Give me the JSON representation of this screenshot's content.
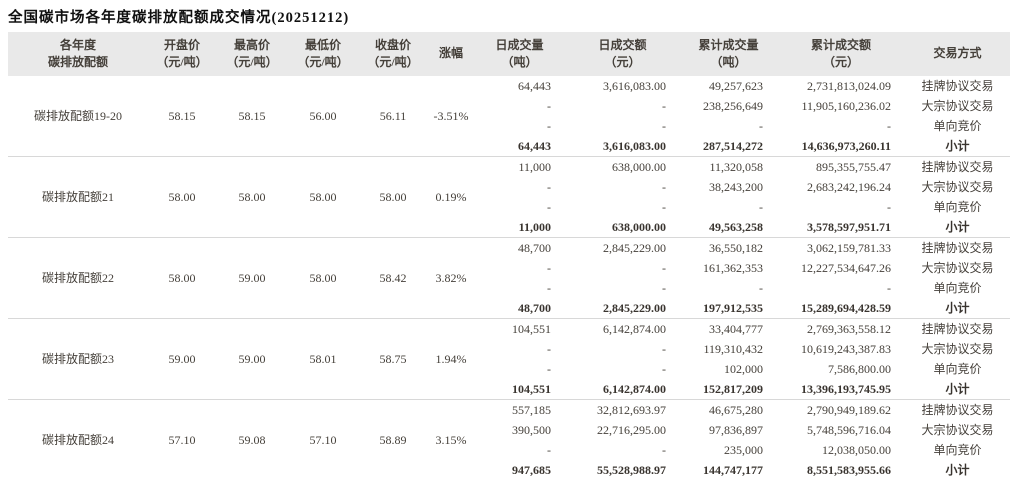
{
  "title": "全国碳市场各年度碳排放配额成交情况(20251212)",
  "colors": {
    "header_bg": "#e9e9e9",
    "body_text": "#45403a",
    "title_text": "#101010",
    "block_divider": "#d8d8d8"
  },
  "table": {
    "headers": [
      {
        "key": "year-quota",
        "line1": "各年度",
        "line2": "碳排放配额"
      },
      {
        "key": "open-price",
        "line1": "开盘价",
        "line2": "（元/吨）"
      },
      {
        "key": "high-price",
        "line1": "最高价",
        "line2": "（元/吨）"
      },
      {
        "key": "low-price",
        "line1": "最低价",
        "line2": "（元/吨）"
      },
      {
        "key": "close-price",
        "line1": "收盘价",
        "line2": "（元/吨）"
      },
      {
        "key": "change",
        "line1": "涨幅",
        "line2": ""
      },
      {
        "key": "daily-volume",
        "line1": "日成交量",
        "line2": "（吨）"
      },
      {
        "key": "daily-amount",
        "line1": "日成交额",
        "line2": "（元）"
      },
      {
        "key": "cum-volume",
        "line1": "累计成交量",
        "line2": "（吨）"
      },
      {
        "key": "cum-amount",
        "line1": "累计成交额",
        "line2": "（元）"
      },
      {
        "key": "trade-method",
        "line1": "交易方式",
        "line2": ""
      }
    ],
    "blocks": [
      {
        "name": "碳排放配额19-20",
        "open": "58.15",
        "high": "58.15",
        "low": "56.00",
        "close": "56.11",
        "change": "-3.51%",
        "rows": [
          {
            "daily_volume": "64,443",
            "daily_amount": "3,616,083.00",
            "cum_volume": "49,257,623",
            "cum_amount": "2,731,813,024.09",
            "method": "挂牌协议交易",
            "subtotal": false
          },
          {
            "daily_volume": "-",
            "daily_amount": "-",
            "cum_volume": "238,256,649",
            "cum_amount": "11,905,160,236.02",
            "method": "大宗协议交易",
            "subtotal": false
          },
          {
            "daily_volume": "-",
            "daily_amount": "-",
            "cum_volume": "-",
            "cum_amount": "-",
            "method": "单向竞价",
            "subtotal": false
          },
          {
            "daily_volume": "64,443",
            "daily_amount": "3,616,083.00",
            "cum_volume": "287,514,272",
            "cum_amount": "14,636,973,260.11",
            "method": "小计",
            "subtotal": true
          }
        ]
      },
      {
        "name": "碳排放配额21",
        "open": "58.00",
        "high": "58.00",
        "low": "58.00",
        "close": "58.00",
        "change": "0.19%",
        "rows": [
          {
            "daily_volume": "11,000",
            "daily_amount": "638,000.00",
            "cum_volume": "11,320,058",
            "cum_amount": "895,355,755.47",
            "method": "挂牌协议交易",
            "subtotal": false
          },
          {
            "daily_volume": "-",
            "daily_amount": "-",
            "cum_volume": "38,243,200",
            "cum_amount": "2,683,242,196.24",
            "method": "大宗协议交易",
            "subtotal": false
          },
          {
            "daily_volume": "-",
            "daily_amount": "-",
            "cum_volume": "-",
            "cum_amount": "-",
            "method": "单向竞价",
            "subtotal": false
          },
          {
            "daily_volume": "11,000",
            "daily_amount": "638,000.00",
            "cum_volume": "49,563,258",
            "cum_amount": "3,578,597,951.71",
            "method": "小计",
            "subtotal": true
          }
        ]
      },
      {
        "name": "碳排放配额22",
        "open": "58.00",
        "high": "59.00",
        "low": "58.00",
        "close": "58.42",
        "change": "3.82%",
        "rows": [
          {
            "daily_volume": "48,700",
            "daily_amount": "2,845,229.00",
            "cum_volume": "36,550,182",
            "cum_amount": "3,062,159,781.33",
            "method": "挂牌协议交易",
            "subtotal": false
          },
          {
            "daily_volume": "-",
            "daily_amount": "-",
            "cum_volume": "161,362,353",
            "cum_amount": "12,227,534,647.26",
            "method": "大宗协议交易",
            "subtotal": false
          },
          {
            "daily_volume": "-",
            "daily_amount": "-",
            "cum_volume": "-",
            "cum_amount": "-",
            "method": "单向竞价",
            "subtotal": false
          },
          {
            "daily_volume": "48,700",
            "daily_amount": "2,845,229.00",
            "cum_volume": "197,912,535",
            "cum_amount": "15,289,694,428.59",
            "method": "小计",
            "subtotal": true
          }
        ]
      },
      {
        "name": "碳排放配额23",
        "open": "59.00",
        "high": "59.00",
        "low": "58.01",
        "close": "58.75",
        "change": "1.94%",
        "rows": [
          {
            "daily_volume": "104,551",
            "daily_amount": "6,142,874.00",
            "cum_volume": "33,404,777",
            "cum_amount": "2,769,363,558.12",
            "method": "挂牌协议交易",
            "subtotal": false
          },
          {
            "daily_volume": "-",
            "daily_amount": "-",
            "cum_volume": "119,310,432",
            "cum_amount": "10,619,243,387.83",
            "method": "大宗协议交易",
            "subtotal": false
          },
          {
            "daily_volume": "-",
            "daily_amount": "-",
            "cum_volume": "102,000",
            "cum_amount": "7,586,800.00",
            "method": "单向竞价",
            "subtotal": false
          },
          {
            "daily_volume": "104,551",
            "daily_amount": "6,142,874.00",
            "cum_volume": "152,817,209",
            "cum_amount": "13,396,193,745.95",
            "method": "小计",
            "subtotal": true
          }
        ]
      },
      {
        "name": "碳排放配额24",
        "open": "57.10",
        "high": "59.08",
        "low": "57.10",
        "close": "58.89",
        "change": "3.15%",
        "rows": [
          {
            "daily_volume": "557,185",
            "daily_amount": "32,812,693.97",
            "cum_volume": "46,675,280",
            "cum_amount": "2,790,949,189.62",
            "method": "挂牌协议交易",
            "subtotal": false
          },
          {
            "daily_volume": "390,500",
            "daily_amount": "22,716,295.00",
            "cum_volume": "97,836,897",
            "cum_amount": "5,748,596,716.04",
            "method": "大宗协议交易",
            "subtotal": false
          },
          {
            "daily_volume": "-",
            "daily_amount": "-",
            "cum_volume": "235,000",
            "cum_amount": "12,038,050.00",
            "method": "单向竞价",
            "subtotal": false
          },
          {
            "daily_volume": "947,685",
            "daily_amount": "55,528,988.97",
            "cum_volume": "144,747,177",
            "cum_amount": "8,551,583,955.66",
            "method": "小计",
            "subtotal": true
          }
        ]
      }
    ]
  }
}
